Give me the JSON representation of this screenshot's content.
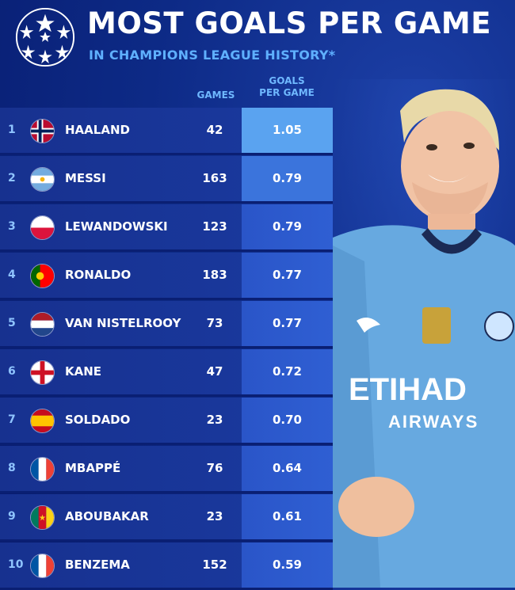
{
  "header": {
    "title": "MOST GOALS PER GAME",
    "subtitle": "IN CHAMPIONS LEAGUE HISTORY*"
  },
  "columns": {
    "games": "GAMES",
    "gpg_line1": "GOALS",
    "gpg_line2": "PER GAME"
  },
  "rows": [
    {
      "rank": "1",
      "name": "HAALAND",
      "games": "42",
      "gpg": "1.05",
      "flag": "norway-flag"
    },
    {
      "rank": "2",
      "name": "MESSI",
      "games": "163",
      "gpg": "0.79",
      "flag": "argentina-flag"
    },
    {
      "rank": "3",
      "name": "LEWANDOWSKI",
      "games": "123",
      "gpg": "0.79",
      "flag": "poland-flag"
    },
    {
      "rank": "4",
      "name": "RONALDO",
      "games": "183",
      "gpg": "0.77",
      "flag": "portugal-flag"
    },
    {
      "rank": "5",
      "name": "VAN NISTELROOY",
      "games": "73",
      "gpg": "0.77",
      "flag": "netherlands-flag"
    },
    {
      "rank": "6",
      "name": "KANE",
      "games": "47",
      "gpg": "0.72",
      "flag": "england-flag"
    },
    {
      "rank": "7",
      "name": "SOLDADO",
      "games": "23",
      "gpg": "0.70",
      "flag": "spain-flag"
    },
    {
      "rank": "8",
      "name": "MBAPPÉ",
      "games": "76",
      "gpg": "0.64",
      "flag": "france-flag"
    },
    {
      "rank": "9",
      "name": "ABOUBAKAR",
      "games": "23",
      "gpg": "0.61",
      "flag": "cameroon-flag"
    },
    {
      "rank": "10",
      "name": "BENZEMA",
      "games": "152",
      "gpg": "0.59",
      "flag": "france-flag"
    }
  ],
  "photo": {
    "sponsor_line1": "ETIHAD",
    "sponsor_line2": "AIRWAYS"
  },
  "colors": {
    "background": "#0d2a86",
    "row": "#1a3aa0",
    "highlight": "#5aa3f0",
    "subtitle": "#5fb0ff"
  }
}
